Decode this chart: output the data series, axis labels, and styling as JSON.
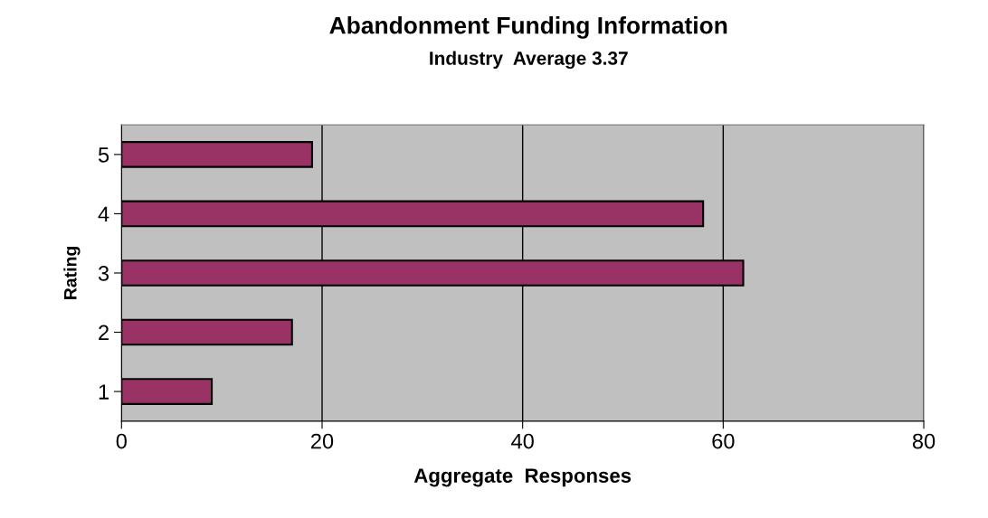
{
  "chart_data": {
    "type": "bar",
    "orientation": "horizontal",
    "title": "Abandonment Funding Information",
    "subtitle": "Industry  Average 3.37",
    "xlabel": "Aggregate  Responses",
    "ylabel": "Rating",
    "categories": [
      "5",
      "4",
      "3",
      "2",
      "1"
    ],
    "values": [
      19,
      58,
      62,
      17,
      9
    ],
    "color": "#993366",
    "xlim": [
      0,
      80
    ],
    "xticks": [
      0,
      20,
      40,
      60,
      80
    ],
    "grid": "x"
  }
}
